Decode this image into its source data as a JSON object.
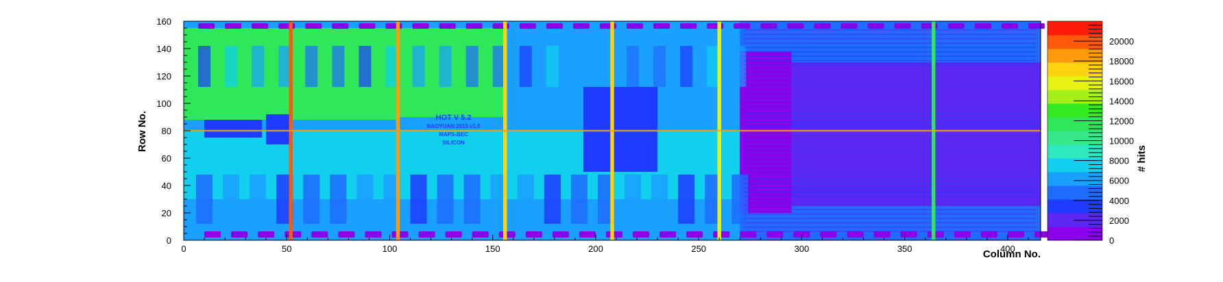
{
  "chart_data": {
    "type": "heatmap",
    "title": "",
    "xlabel": "Column No.",
    "ylabel": "Row No.",
    "zlabel": "# hits",
    "xlim": [
      0,
      416
    ],
    "ylim": [
      0,
      160
    ],
    "zlim": [
      0,
      22000
    ],
    "x_ticks": [
      0,
      50,
      100,
      150,
      200,
      250,
      300,
      350,
      400
    ],
    "y_ticks": [
      0,
      20,
      40,
      60,
      80,
      100,
      120,
      140,
      160
    ],
    "z_ticks": [
      0,
      2000,
      4000,
      6000,
      8000,
      10000,
      12000,
      14000,
      16000,
      18000,
      20000
    ],
    "colormap": [
      "#8a00e8",
      "#5a28f0",
      "#1e3cff",
      "#1f6cff",
      "#1aa0ff",
      "#10d0ee",
      "#2ee8c0",
      "#36e88a",
      "#2ee85a",
      "#32ea1e",
      "#a6f01a",
      "#e6f214",
      "#ffd210",
      "#ff9a0c",
      "#ff5a0a",
      "#ff1a0a"
    ],
    "column_stripes": [
      {
        "x": 52,
        "value": 20000
      },
      {
        "x": 104,
        "value": 19000
      },
      {
        "x": 156,
        "value": 17000
      },
      {
        "x": 208,
        "value": 17000
      },
      {
        "x": 260,
        "value": 16000
      },
      {
        "x": 364,
        "value": 12000
      }
    ],
    "row_stripes": [
      {
        "y": 80,
        "value": 19000
      }
    ],
    "regions": [
      {
        "x": [
          0,
          104
        ],
        "y": [
          88,
          155
        ],
        "value": 12000
      },
      {
        "x": [
          104,
          156
        ],
        "y": [
          90,
          155
        ],
        "value": 11500
      },
      {
        "x": [
          0,
          270
        ],
        "y": [
          30,
          80
        ],
        "value": 8000
      },
      {
        "x": [
          190,
          270
        ],
        "y": [
          88,
          160
        ],
        "value": 6500
      },
      {
        "x": [
          270,
          416
        ],
        "y": [
          0,
          160
        ],
        "value": 4200
      },
      {
        "x": [
          270,
          295
        ],
        "y": [
          20,
          138
        ],
        "value": 1200
      },
      {
        "x": [
          295,
          416
        ],
        "y": [
          25,
          130
        ],
        "value": 2600
      },
      {
        "x": [
          194,
          230
        ],
        "y": [
          50,
          112
        ],
        "value": 3200
      },
      {
        "x": [
          40,
          52
        ],
        "y": [
          70,
          92
        ],
        "value": 3000
      },
      {
        "x": [
          10,
          38
        ],
        "y": [
          75,
          88
        ],
        "value": 3500
      }
    ],
    "chip_markings": [
      "HOT V 5.2",
      "BAOYUAN 2015 v1.0",
      "MAPS-BEC",
      "SILICON"
    ]
  }
}
